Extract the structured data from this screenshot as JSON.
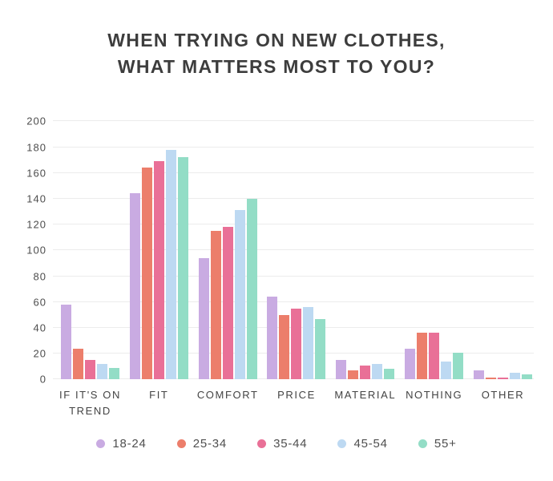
{
  "title": {
    "line1": "WHEN TRYING ON NEW CLOTHES,",
    "line2": "WHAT MATTERS MOST TO YOU?"
  },
  "colors": {
    "background": "#ffffff",
    "title_text": "#3d3d3d",
    "axis_text": "#4d4d4d",
    "gridline": "#ececec"
  },
  "chart_data": {
    "type": "bar",
    "title": "WHEN TRYING ON NEW CLOTHES, WHAT MATTERS MOST TO YOU?",
    "categories": [
      "IF IT'S ON TREND",
      "FIT",
      "COMFORT",
      "PRICE",
      "MATERIAL",
      "NOTHING",
      "OTHER"
    ],
    "series": [
      {
        "name": "18-24",
        "color": "#c9abe2",
        "values": [
          58,
          144,
          94,
          64,
          15,
          24,
          7
        ]
      },
      {
        "name": "25-34",
        "color": "#ec7e6b",
        "values": [
          24,
          164,
          115,
          50,
          7,
          36,
          1
        ]
      },
      {
        "name": "35-44",
        "color": "#e97097",
        "values": [
          15,
          169,
          118,
          55,
          11,
          36,
          1
        ]
      },
      {
        "name": "45-54",
        "color": "#bdd9f2",
        "values": [
          12,
          178,
          131,
          56,
          12,
          14,
          5
        ]
      },
      {
        "name": "55+",
        "color": "#93ddc6",
        "values": [
          9,
          172,
          140,
          47,
          8,
          21,
          4
        ]
      }
    ],
    "xlabel": "",
    "ylabel": "",
    "ylim": [
      0,
      200
    ],
    "yticks": [
      0,
      20,
      40,
      60,
      80,
      100,
      120,
      140,
      160,
      180,
      200
    ],
    "grid": true,
    "legend_position": "bottom"
  }
}
